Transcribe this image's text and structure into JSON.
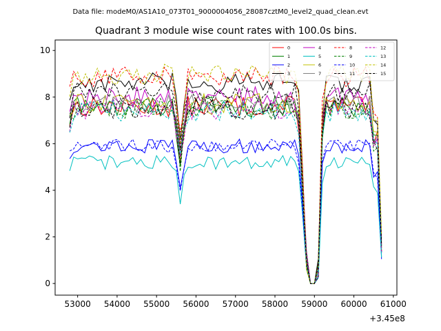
{
  "figure": {
    "suptitle": "Data file: modeM0/AS1A10_073T01_9000004056_28087cztM0_level2_quad_clean.evt",
    "title": "Quadrant 3 module wise count rates with 100.0s bins.",
    "offset_text": "+3.45e8"
  },
  "chart_data": {
    "type": "line",
    "title": "Quadrant 3 module wise count rates with 100.0s bins.",
    "xlabel": "",
    "ylabel": "",
    "x_offset": 345000000,
    "xlim": [
      52430,
      61090
    ],
    "ylim": [
      -0.5,
      10.45
    ],
    "xticks": [
      53000,
      54000,
      55000,
      56000,
      57000,
      58000,
      59000,
      60000,
      61000
    ],
    "yticks": [
      0,
      2,
      4,
      6,
      8,
      10
    ],
    "x_start": 52800,
    "x_step": 100,
    "n_points": 80,
    "grid": false,
    "legend_position": "top-right",
    "series": [
      {
        "name": "0",
        "color": "#ff0000",
        "dashed": false,
        "level": 7.6
      },
      {
        "name": "1",
        "color": "#008000",
        "dashed": false,
        "level": 7.6
      },
      {
        "name": "2",
        "color": "#0000ff",
        "dashed": false,
        "level": 5.9
      },
      {
        "name": "3",
        "color": "#000000",
        "dashed": false,
        "level": 8.6
      },
      {
        "name": "4",
        "color": "#c000c0",
        "dashed": false,
        "level": 8.0
      },
      {
        "name": "5",
        "color": "#00c0c0",
        "dashed": false,
        "level": 5.2
      },
      {
        "name": "6",
        "color": "#c0c000",
        "dashed": false,
        "level": 7.7
      },
      {
        "name": "7",
        "color": "#808080",
        "dashed": false,
        "level": 7.7
      },
      {
        "name": "8",
        "color": "#ff0000",
        "dashed": true,
        "level": 8.9
      },
      {
        "name": "9",
        "color": "#008000",
        "dashed": true,
        "level": 7.5
      },
      {
        "name": "10",
        "color": "#0000ff",
        "dashed": true,
        "level": 5.9
      },
      {
        "name": "11",
        "color": "#000000",
        "dashed": true,
        "level": 8.2
      },
      {
        "name": "12",
        "color": "#c000c0",
        "dashed": true,
        "level": 7.5
      },
      {
        "name": "13",
        "color": "#00c0c0",
        "dashed": true,
        "level": 7.4
      },
      {
        "name": "14",
        "color": "#c0c000",
        "dashed": true,
        "level": 9.0
      },
      {
        "name": "15",
        "color": "#000000",
        "dashed": true,
        "level": 7.5
      }
    ]
  }
}
